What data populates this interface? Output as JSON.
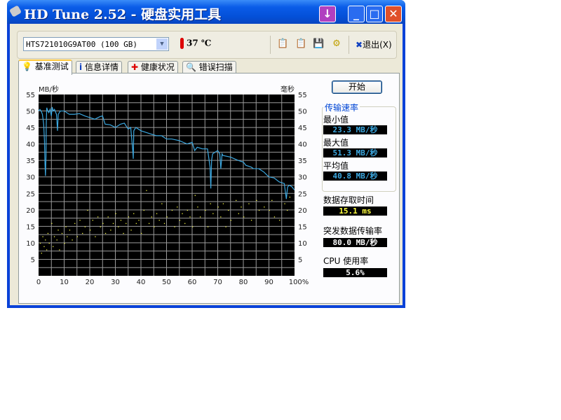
{
  "window": {
    "title": "HD Tune 2.52 - 硬盘实用工具"
  },
  "toolbar": {
    "drive": "HTS721010G9AT00 (100 GB)",
    "temperature": "37 ℃",
    "exit_label": "退出(X)",
    "icons": [
      "copy-text-icon",
      "copy-image-icon",
      "save-icon",
      "options-icon"
    ]
  },
  "tabs": [
    {
      "label": "基准测试",
      "icon": "benchmark-icon"
    },
    {
      "label": "信息详情",
      "icon": "info-icon"
    },
    {
      "label": "健康状况",
      "icon": "health-icon"
    },
    {
      "label": "错误扫描",
      "icon": "error-scan-icon"
    }
  ],
  "side": {
    "start": "开始",
    "transfer_rate": "传输速率",
    "min_label": "最小值",
    "min": "23.3 MB/秒",
    "max_label": "最大值",
    "max": "51.3 MB/秒",
    "avg_label": "平均值",
    "avg": "40.8 MB/秒",
    "access_label": "数据存取时间",
    "access": "15.1 ms",
    "burst_label": "突发数据传输率",
    "burst": "80.0 MB/秒",
    "cpu_label": "CPU 使用率",
    "cpu": "5.6%"
  },
  "colors": {
    "transfer": "#3CA8E0",
    "access": "#F0F040",
    "value_blue": "#3CA8E0",
    "value_yellow": "#FFFF40"
  },
  "chart_data": {
    "type": "line",
    "ylabel_left": "MB/秒",
    "ylabel_right": "毫秒",
    "ylim": [
      0,
      55
    ],
    "xlim": [
      0,
      100
    ],
    "yticks": [
      "5",
      "10",
      "15",
      "20",
      "25",
      "30",
      "35",
      "40",
      "45",
      "50",
      "55"
    ],
    "xticks": [
      "0",
      "10",
      "20",
      "30",
      "40",
      "50",
      "60",
      "70",
      "80",
      "90",
      "100%"
    ],
    "grid": true,
    "series": [
      {
        "type": "line",
        "color": "#3CA8E0",
        "points": [
          [
            0,
            50
          ],
          [
            0.5,
            50.5
          ],
          [
            1,
            50
          ],
          [
            1.5,
            49
          ],
          [
            2,
            46
          ],
          [
            2.3,
            41
          ],
          [
            2.5,
            34
          ],
          [
            2.7,
            30.3
          ],
          [
            2.9,
            36
          ],
          [
            3,
            46
          ],
          [
            3.2,
            51
          ],
          [
            3.6,
            50
          ],
          [
            4,
            49.5
          ],
          [
            4.5,
            50.5
          ],
          [
            5,
            48.5
          ],
          [
            5.3,
            51.2
          ],
          [
            5.7,
            50
          ],
          [
            6.2,
            50.5
          ],
          [
            7,
            49
          ],
          [
            7.4,
            44
          ],
          [
            7.7,
            49
          ],
          [
            8.5,
            50
          ],
          [
            10,
            50
          ],
          [
            12,
            49
          ],
          [
            14,
            49
          ],
          [
            16,
            49.2
          ],
          [
            18,
            48.5
          ],
          [
            20,
            48
          ],
          [
            22,
            47.5
          ],
          [
            24,
            48.3
          ],
          [
            25,
            48.5
          ],
          [
            26,
            46
          ],
          [
            28,
            45.8
          ],
          [
            30,
            45
          ],
          [
            32,
            46
          ],
          [
            33.5,
            46.3
          ],
          [
            35,
            44.5
          ],
          [
            36,
            45
          ],
          [
            36.8,
            38
          ],
          [
            37,
            35.5
          ],
          [
            37.2,
            44
          ],
          [
            38,
            45
          ],
          [
            40,
            44
          ],
          [
            42,
            43.5
          ],
          [
            44,
            43
          ],
          [
            46,
            42.5
          ],
          [
            48,
            42.5
          ],
          [
            50,
            41.5
          ],
          [
            52,
            41.5
          ],
          [
            55,
            41
          ],
          [
            58,
            40
          ],
          [
            60,
            40.5
          ],
          [
            61,
            38
          ],
          [
            62,
            39
          ],
          [
            64,
            38.5
          ],
          [
            66,
            38.5
          ],
          [
            67,
            33
          ],
          [
            67.3,
            26.5
          ],
          [
            67.6,
            35
          ],
          [
            68,
            37
          ],
          [
            69,
            37.5
          ],
          [
            70,
            38
          ],
          [
            70.8,
            37
          ],
          [
            71.2,
            32.5
          ],
          [
            71.7,
            37
          ],
          [
            72,
            36.5
          ],
          [
            75,
            36
          ],
          [
            78,
            35
          ],
          [
            80,
            34.5
          ],
          [
            81,
            33.5
          ],
          [
            83,
            33
          ],
          [
            84,
            32.5
          ],
          [
            86,
            32.5
          ],
          [
            88,
            31.5
          ],
          [
            90,
            30
          ],
          [
            92,
            29.7
          ],
          [
            94,
            28.5
          ],
          [
            96,
            28
          ],
          [
            96.8,
            23.3
          ],
          [
            97.3,
            27
          ],
          [
            98,
            27.5
          ],
          [
            99,
            27
          ],
          [
            100,
            26
          ]
        ]
      },
      {
        "type": "scatter",
        "color": "#F0F040",
        "points": [
          [
            0.5,
            10
          ],
          [
            1,
            7
          ],
          [
            1.5,
            12
          ],
          [
            2,
            9
          ],
          [
            2.5,
            11
          ],
          [
            3,
            8
          ],
          [
            3.5,
            13
          ],
          [
            4,
            10
          ],
          [
            5,
            16
          ],
          [
            5.5,
            9
          ],
          [
            6,
            12
          ],
          [
            7,
            11
          ],
          [
            7.5,
            14
          ],
          [
            8,
            8
          ],
          [
            9,
            13
          ],
          [
            10,
            10
          ],
          [
            10.5,
            15
          ],
          [
            11,
            12
          ],
          [
            12,
            14
          ],
          [
            13,
            11
          ],
          [
            14,
            16
          ],
          [
            15,
            12
          ],
          [
            16,
            17
          ],
          [
            17,
            13
          ],
          [
            18,
            15
          ],
          [
            19,
            20
          ],
          [
            20,
            14
          ],
          [
            21,
            17
          ],
          [
            22,
            12
          ],
          [
            23,
            18
          ],
          [
            24,
            15
          ],
          [
            25,
            16
          ],
          [
            26,
            13
          ],
          [
            27,
            18
          ],
          [
            28,
            14
          ],
          [
            29,
            16
          ],
          [
            30,
            19
          ],
          [
            31,
            15
          ],
          [
            32,
            17
          ],
          [
            33,
            13
          ],
          [
            34,
            16
          ],
          [
            35,
            18
          ],
          [
            36,
            14
          ],
          [
            37,
            19
          ],
          [
            38,
            16
          ],
          [
            39,
            17
          ],
          [
            40,
            13
          ],
          [
            41,
            20
          ],
          [
            42,
            26
          ],
          [
            43,
            16
          ],
          [
            44,
            18
          ],
          [
            45,
            15
          ],
          [
            46,
            19
          ],
          [
            47,
            17
          ],
          [
            48,
            22
          ],
          [
            49,
            16
          ],
          [
            50,
            18
          ],
          [
            52,
            20
          ],
          [
            53,
            15
          ],
          [
            54,
            21
          ],
          [
            55,
            17
          ],
          [
            56,
            19
          ],
          [
            57,
            16
          ],
          [
            58,
            20
          ],
          [
            59,
            18
          ],
          [
            60,
            15
          ],
          [
            61,
            24.5
          ],
          [
            62,
            21
          ],
          [
            63,
            18
          ],
          [
            65,
            20
          ],
          [
            66,
            15
          ],
          [
            67,
            22
          ],
          [
            68,
            19
          ],
          [
            70,
            21
          ],
          [
            71,
            18
          ],
          [
            72,
            22
          ],
          [
            73,
            15
          ],
          [
            74,
            20
          ],
          [
            75,
            17
          ],
          [
            77,
            23
          ],
          [
            78,
            19
          ],
          [
            79,
            21
          ],
          [
            80,
            18
          ],
          [
            82,
            22
          ],
          [
            83,
            17
          ],
          [
            85,
            23
          ],
          [
            86,
            20
          ],
          [
            88,
            21
          ],
          [
            90,
            20
          ],
          [
            91,
            23
          ],
          [
            92,
            18
          ],
          [
            94,
            17
          ],
          [
            96,
            22
          ],
          [
            97,
            20
          ],
          [
            98,
            24
          ]
        ]
      }
    ]
  }
}
